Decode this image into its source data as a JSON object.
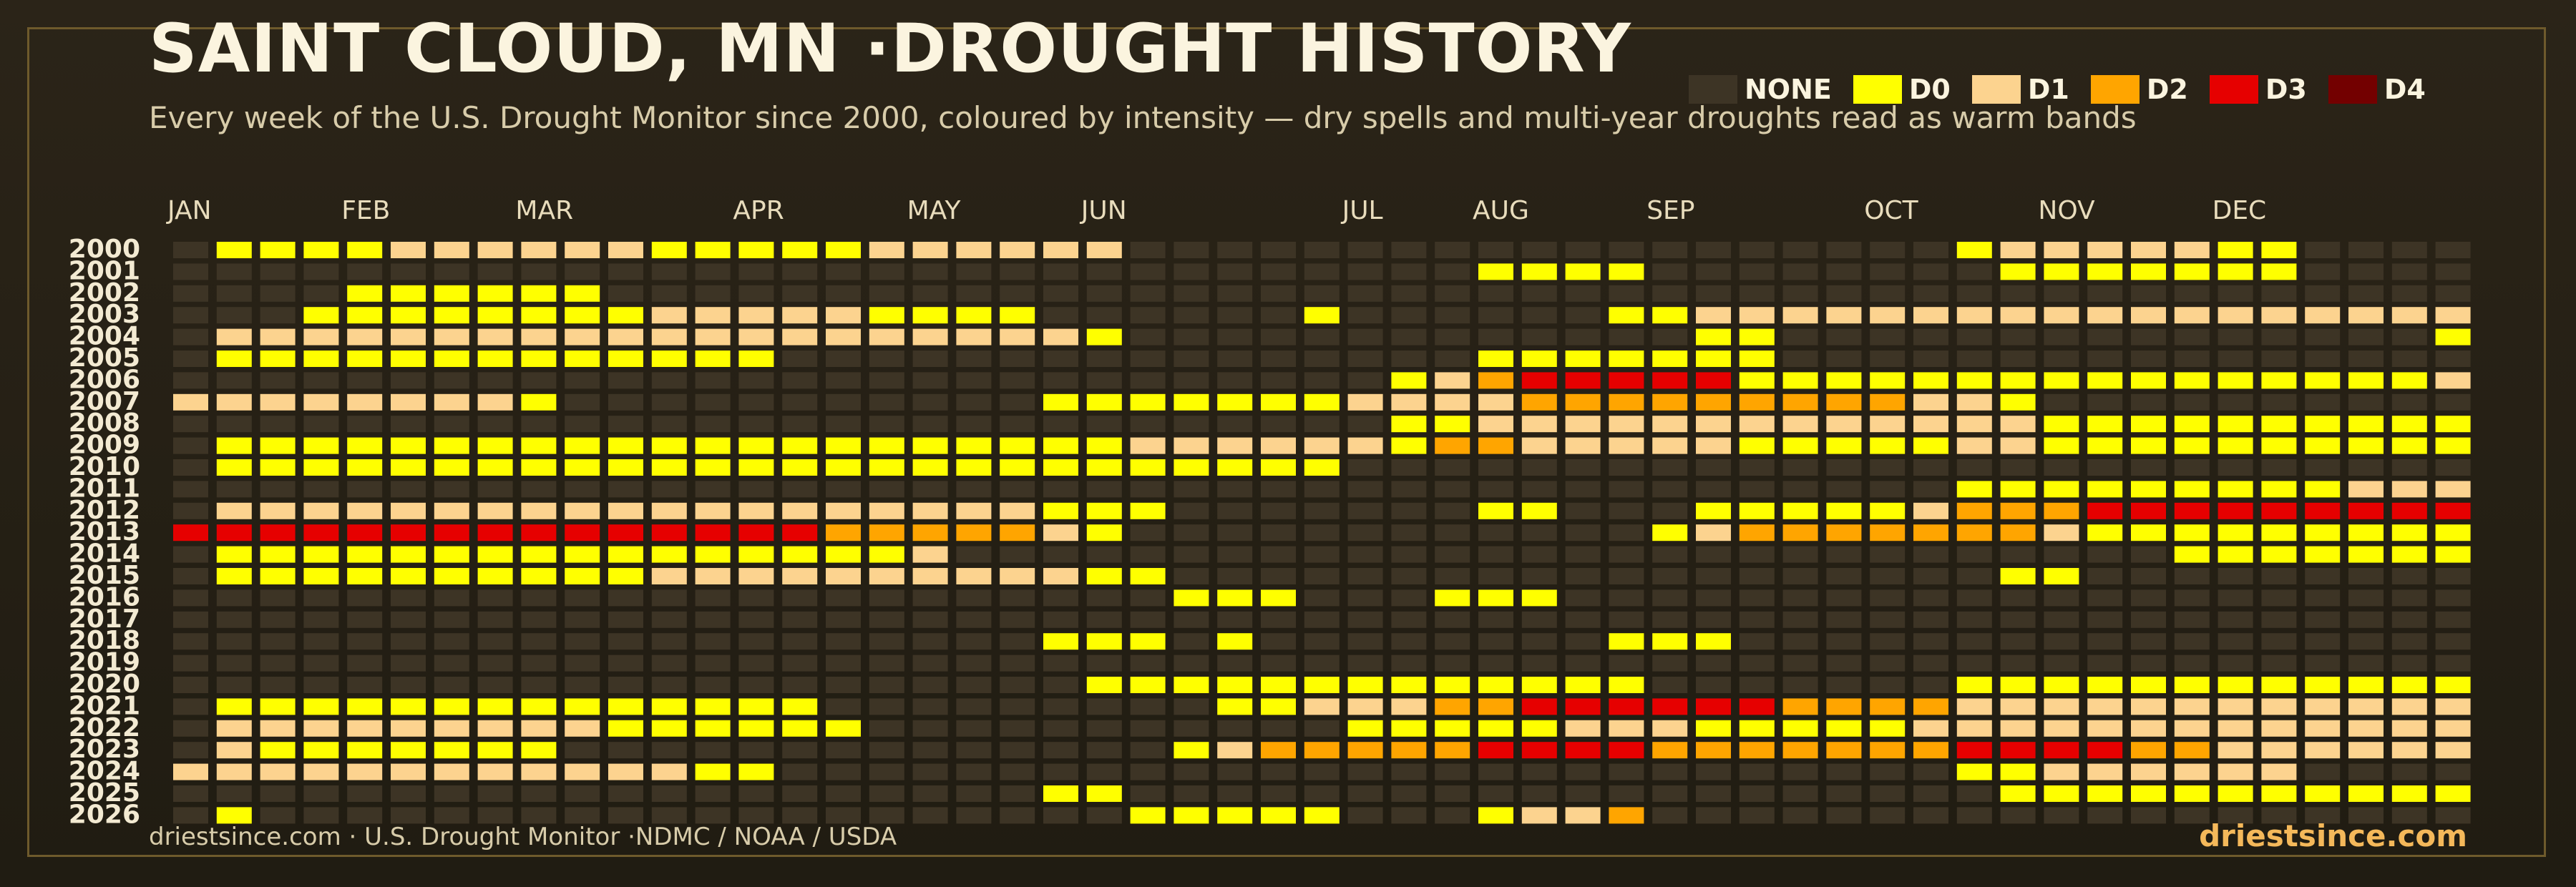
{
  "header": {
    "title": "SAINT CLOUD, MN ·DROUGHT HISTORY",
    "subtitle": "Every week of the U.S. Drought Monitor since 2000, coloured by intensity — dry spells and multi-year droughts read as warm bands"
  },
  "legend": [
    {
      "label": "NONE",
      "color": "#3d3425"
    },
    {
      "label": "D0",
      "color": "#ffff00"
    },
    {
      "label": "D1",
      "color": "#fcd38f"
    },
    {
      "label": "D2",
      "color": "#ffa500"
    },
    {
      "label": "D3",
      "color": "#e60000"
    },
    {
      "label": "D4",
      "color": "#730000"
    }
  ],
  "footer": {
    "source": "driestsince.com  · U.S. Drought Monitor ·NDMC / NOAA / USDA",
    "brand": "driestsince.com"
  },
  "chart_data": {
    "type": "heatmap",
    "title": "SAINT CLOUD, MN ·DROUGHT HISTORY",
    "x_label": "",
    "y_label": "",
    "months": [
      "JAN",
      "FEB",
      "MAR",
      "APR",
      "MAY",
      "JUN",
      "JUL",
      "AUG",
      "SEP",
      "OCT",
      "NOV",
      "DEC"
    ],
    "month_start_weeks": [
      0,
      4,
      8,
      13,
      17,
      21,
      27,
      30,
      34,
      39,
      43,
      47
    ],
    "weeks_per_year": 53,
    "value_scale": {
      "-1": "NONE",
      "0": "D0",
      "1": "D1",
      "2": "D2",
      "3": "D3",
      "4": "D4"
    },
    "years": [
      "2000",
      "2001",
      "2002",
      "2003",
      "2004",
      "2005",
      "2006",
      "2007",
      "2008",
      "2009",
      "2010",
      "2011",
      "2012",
      "2013",
      "2014",
      "2015",
      "2016",
      "2017",
      "2018",
      "2019",
      "2020",
      "2021",
      "2022",
      "2023",
      "2024",
      "2025",
      "2026"
    ],
    "rows": [
      [
        -1,
        0,
        0,
        0,
        0,
        1,
        1,
        1,
        1,
        1,
        1,
        0,
        0,
        0,
        0,
        0,
        1,
        1,
        1,
        1,
        1,
        1,
        -1,
        -1,
        -1,
        -1,
        -1,
        -1,
        -1,
        -1,
        -1,
        -1,
        -1,
        -1,
        -1,
        -1,
        -1,
        -1,
        -1,
        -1,
        -1,
        0,
        1,
        1,
        1,
        1,
        1,
        0,
        0,
        -1,
        -1,
        -1,
        -1
      ],
      [
        -1,
        -1,
        -1,
        -1,
        -1,
        -1,
        -1,
        -1,
        -1,
        -1,
        -1,
        -1,
        -1,
        -1,
        -1,
        -1,
        -1,
        -1,
        -1,
        -1,
        -1,
        -1,
        -1,
        -1,
        -1,
        -1,
        -1,
        -1,
        -1,
        -1,
        0,
        0,
        0,
        0,
        -1,
        -1,
        -1,
        -1,
        -1,
        -1,
        -1,
        -1,
        0,
        0,
        0,
        0,
        0,
        0,
        0,
        -1,
        -1,
        -1,
        -1
      ],
      [
        -1,
        -1,
        -1,
        -1,
        0,
        0,
        0,
        0,
        0,
        0,
        -1,
        -1,
        -1,
        -1,
        -1,
        -1,
        -1,
        -1,
        -1,
        -1,
        -1,
        -1,
        -1,
        -1,
        -1,
        -1,
        -1,
        -1,
        -1,
        -1,
        -1,
        -1,
        -1,
        -1,
        -1,
        -1,
        -1,
        -1,
        -1,
        -1,
        -1,
        -1,
        -1,
        -1,
        -1,
        -1,
        -1,
        -1,
        -1,
        -1,
        -1,
        -1,
        -1
      ],
      [
        -1,
        -1,
        -1,
        0,
        0,
        0,
        0,
        0,
        0,
        0,
        0,
        1,
        1,
        1,
        1,
        1,
        0,
        0,
        0,
        0,
        -1,
        -1,
        -1,
        -1,
        -1,
        -1,
        0,
        -1,
        -1,
        -1,
        -1,
        -1,
        -1,
        0,
        0,
        1,
        1,
        1,
        1,
        1,
        1,
        1,
        1,
        1,
        1,
        1,
        1,
        1,
        1,
        1,
        1,
        1,
        1
      ],
      [
        -1,
        1,
        1,
        1,
        1,
        1,
        1,
        1,
        1,
        1,
        1,
        1,
        1,
        1,
        1,
        1,
        1,
        1,
        1,
        1,
        1,
        0,
        -1,
        -1,
        -1,
        -1,
        -1,
        -1,
        -1,
        -1,
        -1,
        -1,
        -1,
        -1,
        -1,
        0,
        0,
        -1,
        -1,
        -1,
        -1,
        -1,
        -1,
        -1,
        -1,
        -1,
        -1,
        -1,
        -1,
        -1,
        -1,
        -1,
        0
      ],
      [
        -1,
        0,
        0,
        0,
        0,
        0,
        0,
        0,
        0,
        0,
        0,
        0,
        0,
        0,
        -1,
        -1,
        -1,
        -1,
        -1,
        -1,
        -1,
        -1,
        -1,
        -1,
        -1,
        -1,
        -1,
        -1,
        -1,
        -1,
        0,
        0,
        0,
        0,
        0,
        0,
        0,
        -1,
        -1,
        -1,
        -1,
        -1,
        -1,
        -1,
        -1,
        -1,
        -1,
        -1,
        -1,
        -1,
        -1,
        -1,
        -1
      ],
      [
        -1,
        -1,
        -1,
        -1,
        -1,
        -1,
        -1,
        -1,
        -1,
        -1,
        -1,
        -1,
        -1,
        -1,
        -1,
        -1,
        -1,
        -1,
        -1,
        -1,
        -1,
        -1,
        -1,
        -1,
        -1,
        -1,
        -1,
        -1,
        0,
        1,
        2,
        3,
        3,
        3,
        3,
        3,
        0,
        0,
        0,
        0,
        0,
        0,
        0,
        0,
        0,
        0,
        0,
        0,
        0,
        0,
        0,
        0,
        1
      ],
      [
        1,
        1,
        1,
        1,
        1,
        1,
        1,
        1,
        0,
        -1,
        -1,
        -1,
        -1,
        -1,
        -1,
        -1,
        -1,
        -1,
        -1,
        -1,
        0,
        0,
        0,
        0,
        0,
        0,
        0,
        1,
        1,
        1,
        1,
        2,
        2,
        2,
        2,
        2,
        2,
        2,
        2,
        2,
        1,
        1,
        0,
        -1,
        -1,
        -1,
        -1,
        -1,
        -1,
        -1,
        -1,
        -1,
        -1
      ],
      [
        -1,
        -1,
        -1,
        -1,
        -1,
        -1,
        -1,
        -1,
        -1,
        -1,
        -1,
        -1,
        -1,
        -1,
        -1,
        -1,
        -1,
        -1,
        -1,
        -1,
        -1,
        -1,
        -1,
        -1,
        -1,
        -1,
        -1,
        -1,
        0,
        0,
        1,
        1,
        1,
        1,
        1,
        1,
        1,
        1,
        1,
        1,
        1,
        1,
        1,
        0,
        0,
        0,
        0,
        0,
        0,
        0,
        0,
        0,
        0
      ],
      [
        -1,
        0,
        0,
        0,
        0,
        0,
        0,
        0,
        0,
        0,
        0,
        0,
        0,
        0,
        0,
        0,
        0,
        0,
        0,
        0,
        0,
        0,
        1,
        1,
        1,
        1,
        1,
        1,
        0,
        2,
        2,
        1,
        1,
        1,
        1,
        1,
        0,
        0,
        0,
        0,
        0,
        1,
        1,
        0,
        0,
        0,
        0,
        0,
        0,
        0,
        0,
        0,
        0
      ],
      [
        -1,
        0,
        0,
        0,
        0,
        0,
        0,
        0,
        0,
        0,
        0,
        0,
        0,
        0,
        0,
        0,
        0,
        0,
        0,
        0,
        0,
        0,
        0,
        0,
        0,
        0,
        0,
        -1,
        -1,
        -1,
        -1,
        -1,
        -1,
        -1,
        -1,
        -1,
        -1,
        -1,
        -1,
        -1,
        -1,
        -1,
        -1,
        -1,
        -1,
        -1,
        -1,
        -1,
        -1,
        -1,
        -1,
        -1,
        -1
      ],
      [
        -1,
        -1,
        -1,
        -1,
        -1,
        -1,
        -1,
        -1,
        -1,
        -1,
        -1,
        -1,
        -1,
        -1,
        -1,
        -1,
        -1,
        -1,
        -1,
        -1,
        -1,
        -1,
        -1,
        -1,
        -1,
        -1,
        -1,
        -1,
        -1,
        -1,
        -1,
        -1,
        -1,
        -1,
        -1,
        -1,
        -1,
        -1,
        -1,
        -1,
        -1,
        0,
        0,
        0,
        0,
        0,
        0,
        0,
        0,
        0,
        1,
        1,
        1
      ],
      [
        -1,
        1,
        1,
        1,
        1,
        1,
        1,
        1,
        1,
        1,
        1,
        1,
        1,
        1,
        1,
        1,
        1,
        1,
        1,
        1,
        0,
        0,
        0,
        -1,
        -1,
        -1,
        -1,
        -1,
        -1,
        -1,
        0,
        0,
        -1,
        -1,
        -1,
        0,
        0,
        0,
        0,
        0,
        1,
        2,
        2,
        2,
        3,
        3,
        3,
        3,
        3,
        3,
        3,
        3,
        3
      ],
      [
        3,
        3,
        3,
        3,
        3,
        3,
        3,
        3,
        3,
        3,
        3,
        3,
        3,
        3,
        3,
        2,
        2,
        2,
        2,
        2,
        1,
        0,
        -1,
        -1,
        -1,
        -1,
        -1,
        -1,
        -1,
        -1,
        -1,
        -1,
        -1,
        -1,
        0,
        1,
        2,
        2,
        2,
        2,
        2,
        2,
        2,
        1,
        0,
        0,
        0,
        0,
        0,
        0,
        0,
        0,
        0
      ],
      [
        -1,
        0,
        0,
        0,
        0,
        0,
        0,
        0,
        0,
        0,
        0,
        0,
        0,
        0,
        0,
        0,
        0,
        1,
        -1,
        -1,
        -1,
        -1,
        -1,
        -1,
        -1,
        -1,
        -1,
        -1,
        -1,
        -1,
        -1,
        -1,
        -1,
        -1,
        -1,
        -1,
        -1,
        -1,
        -1,
        -1,
        -1,
        -1,
        -1,
        -1,
        -1,
        -1,
        0,
        0,
        0,
        0,
        0,
        0,
        0
      ],
      [
        -1,
        0,
        0,
        0,
        0,
        0,
        0,
        0,
        0,
        0,
        0,
        1,
        1,
        1,
        1,
        1,
        1,
        1,
        1,
        1,
        1,
        0,
        0,
        -1,
        -1,
        -1,
        -1,
        -1,
        -1,
        -1,
        -1,
        -1,
        -1,
        -1,
        -1,
        -1,
        -1,
        -1,
        -1,
        -1,
        -1,
        -1,
        0,
        0,
        -1,
        -1,
        -1,
        -1,
        -1,
        -1,
        -1,
        -1,
        -1
      ],
      [
        -1,
        -1,
        -1,
        -1,
        -1,
        -1,
        -1,
        -1,
        -1,
        -1,
        -1,
        -1,
        -1,
        -1,
        -1,
        -1,
        -1,
        -1,
        -1,
        -1,
        -1,
        -1,
        -1,
        0,
        0,
        0,
        -1,
        -1,
        -1,
        0,
        0,
        0,
        -1,
        -1,
        -1,
        -1,
        -1,
        -1,
        -1,
        -1,
        -1,
        -1,
        -1,
        -1,
        -1,
        -1,
        -1,
        -1,
        -1,
        -1,
        -1,
        -1,
        -1
      ],
      [
        -1,
        -1,
        -1,
        -1,
        -1,
        -1,
        -1,
        -1,
        -1,
        -1,
        -1,
        -1,
        -1,
        -1,
        -1,
        -1,
        -1,
        -1,
        -1,
        -1,
        -1,
        -1,
        -1,
        -1,
        -1,
        -1,
        -1,
        -1,
        -1,
        -1,
        -1,
        -1,
        -1,
        -1,
        -1,
        -1,
        -1,
        -1,
        -1,
        -1,
        -1,
        -1,
        -1,
        -1,
        -1,
        -1,
        -1,
        -1,
        -1,
        -1,
        -1,
        -1,
        -1
      ],
      [
        -1,
        -1,
        -1,
        -1,
        -1,
        -1,
        -1,
        -1,
        -1,
        -1,
        -1,
        -1,
        -1,
        -1,
        -1,
        -1,
        -1,
        -1,
        -1,
        -1,
        0,
        0,
        0,
        -1,
        0,
        -1,
        -1,
        -1,
        -1,
        -1,
        -1,
        -1,
        -1,
        0,
        0,
        0,
        -1,
        -1,
        -1,
        -1,
        -1,
        -1,
        -1,
        -1,
        -1,
        -1,
        -1,
        -1,
        -1,
        -1,
        -1,
        -1,
        -1
      ],
      [
        -1,
        -1,
        -1,
        -1,
        -1,
        -1,
        -1,
        -1,
        -1,
        -1,
        -1,
        -1,
        -1,
        -1,
        -1,
        -1,
        -1,
        -1,
        -1,
        -1,
        -1,
        -1,
        -1,
        -1,
        -1,
        -1,
        -1,
        -1,
        -1,
        -1,
        -1,
        -1,
        -1,
        -1,
        -1,
        -1,
        -1,
        -1,
        -1,
        -1,
        -1,
        -1,
        -1,
        -1,
        -1,
        -1,
        -1,
        -1,
        -1,
        -1,
        -1,
        -1,
        -1
      ],
      [
        -1,
        -1,
        -1,
        -1,
        -1,
        -1,
        -1,
        -1,
        -1,
        -1,
        -1,
        -1,
        -1,
        -1,
        -1,
        -1,
        -1,
        -1,
        -1,
        -1,
        -1,
        0,
        0,
        0,
        0,
        0,
        0,
        0,
        0,
        0,
        0,
        0,
        0,
        0,
        -1,
        -1,
        -1,
        -1,
        -1,
        -1,
        -1,
        0,
        0,
        0,
        0,
        0,
        0,
        0,
        0,
        0,
        0,
        0,
        0
      ],
      [
        -1,
        0,
        0,
        0,
        0,
        0,
        0,
        0,
        0,
        0,
        0,
        0,
        0,
        0,
        0,
        -1,
        -1,
        -1,
        -1,
        -1,
        -1,
        -1,
        -1,
        -1,
        0,
        0,
        1,
        1,
        1,
        2,
        2,
        3,
        3,
        3,
        3,
        3,
        3,
        2,
        2,
        2,
        2,
        1,
        1,
        1,
        1,
        1,
        1,
        1,
        1,
        1,
        1,
        1,
        1
      ],
      [
        -1,
        1,
        1,
        1,
        1,
        1,
        1,
        1,
        1,
        1,
        0,
        0,
        0,
        0,
        0,
        0,
        -1,
        -1,
        -1,
        -1,
        -1,
        -1,
        -1,
        -1,
        -1,
        -1,
        -1,
        0,
        0,
        0,
        0,
        0,
        1,
        1,
        1,
        0,
        0,
        0,
        0,
        0,
        1,
        1,
        1,
        1,
        1,
        1,
        1,
        1,
        1,
        1,
        1,
        1,
        1
      ],
      [
        -1,
        1,
        0,
        0,
        0,
        0,
        0,
        0,
        0,
        -1,
        -1,
        -1,
        -1,
        -1,
        -1,
        -1,
        -1,
        -1,
        -1,
        -1,
        -1,
        -1,
        -1,
        0,
        1,
        2,
        2,
        2,
        2,
        2,
        3,
        3,
        3,
        3,
        2,
        2,
        2,
        2,
        2,
        2,
        2,
        3,
        3,
        3,
        3,
        2,
        2,
        1,
        1,
        1,
        1,
        1,
        1
      ],
      [
        1,
        1,
        1,
        1,
        1,
        1,
        1,
        1,
        1,
        1,
        1,
        1,
        0,
        0,
        -1,
        -1,
        -1,
        -1,
        -1,
        -1,
        -1,
        -1,
        -1,
        -1,
        -1,
        -1,
        -1,
        -1,
        -1,
        -1,
        -1,
        -1,
        -1,
        -1,
        -1,
        -1,
        -1,
        -1,
        -1,
        -1,
        -1,
        0,
        0,
        1,
        1,
        1,
        1,
        1,
        1,
        -1,
        -1,
        -1,
        -1
      ],
      [
        -1,
        -1,
        -1,
        -1,
        -1,
        -1,
        -1,
        -1,
        -1,
        -1,
        -1,
        -1,
        -1,
        -1,
        -1,
        -1,
        -1,
        -1,
        -1,
        -1,
        0,
        0,
        -1,
        -1,
        -1,
        -1,
        -1,
        -1,
        -1,
        -1,
        -1,
        -1,
        -1,
        -1,
        -1,
        -1,
        -1,
        -1,
        -1,
        -1,
        -1,
        -1,
        0,
        0,
        0,
        0,
        0,
        0,
        0,
        0,
        0,
        0,
        0
      ],
      [
        -1,
        0,
        -1,
        -1,
        -1,
        -1,
        -1,
        -1,
        -1,
        -1,
        -1,
        -1,
        -1,
        -1,
        -1,
        -1,
        -1,
        -1,
        -1,
        -1,
        -1,
        -1,
        0,
        0,
        0,
        0,
        0,
        -1,
        -1,
        -1,
        0,
        1,
        1,
        2,
        -1,
        -1,
        -1,
        -1,
        -1,
        -1,
        -1,
        -1,
        -1,
        -1,
        -1,
        -1,
        -1,
        -1,
        -1,
        -1,
        -1,
        -1,
        -1
      ]
    ]
  }
}
